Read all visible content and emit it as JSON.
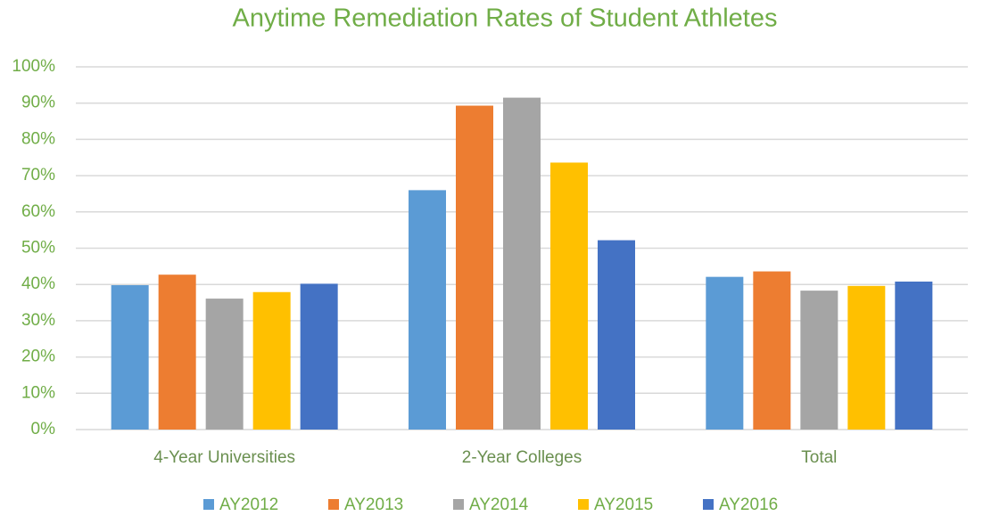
{
  "chart_data": {
    "type": "bar",
    "title": "Anytime Remediation Rates of Student Athletes",
    "categories": [
      "4-Year Universities",
      "2-Year Colleges",
      "Total"
    ],
    "series": [
      {
        "name": "AY2012",
        "color": "#5b9bd5",
        "values": [
          39.8,
          66.0,
          42.1
        ]
      },
      {
        "name": "AY2013",
        "color": "#ed7d31",
        "values": [
          42.7,
          89.3,
          43.6
        ]
      },
      {
        "name": "AY2014",
        "color": "#a5a5a5",
        "values": [
          36.1,
          91.5,
          38.3
        ]
      },
      {
        "name": "AY2015",
        "color": "#ffc000",
        "values": [
          37.9,
          73.6,
          39.6
        ]
      },
      {
        "name": "AY2016",
        "color": "#4472c4",
        "values": [
          40.2,
          52.2,
          40.8
        ]
      }
    ],
    "ylim": [
      0,
      100
    ],
    "yticks": [
      {
        "value": 0,
        "label": "0%"
      },
      {
        "value": 10,
        "label": "10%"
      },
      {
        "value": 20,
        "label": "20%"
      },
      {
        "value": 30,
        "label": "30%"
      },
      {
        "value": 40,
        "label": "40%"
      },
      {
        "value": 50,
        "label": "50%"
      },
      {
        "value": 60,
        "label": "60%"
      },
      {
        "value": 70,
        "label": "70%"
      },
      {
        "value": 80,
        "label": "80%"
      },
      {
        "value": 90,
        "label": "90%"
      },
      {
        "value": 100,
        "label": "100%"
      }
    ],
    "grid": true,
    "legend": "bottom"
  }
}
